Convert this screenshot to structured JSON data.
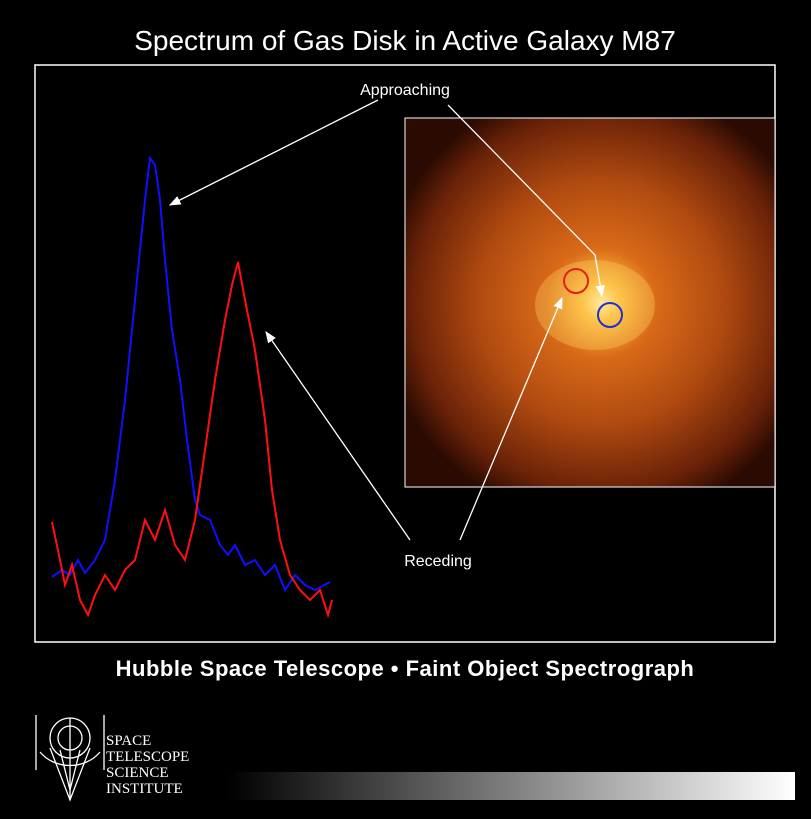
{
  "title": "Spectrum of Gas Disk in Active Galaxy M87",
  "labels": {
    "approaching": "Approaching",
    "receding": "Receding"
  },
  "subtitle": "Hubble Space Telescope • Faint Object Spectrograph",
  "logo": {
    "lines": [
      "SPACE",
      "TELESCOPE",
      "SCIENCE",
      "INSTITUTE"
    ]
  }
}
